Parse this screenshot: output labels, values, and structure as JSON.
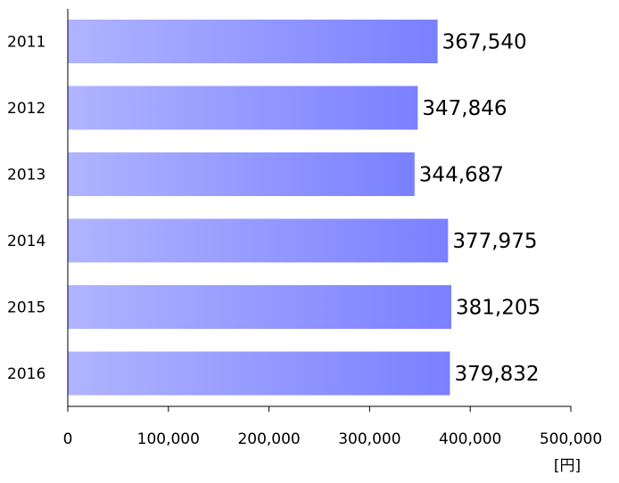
{
  "chart_data": {
    "type": "bar",
    "orientation": "horizontal",
    "categories": [
      "2011",
      "2012",
      "2013",
      "2014",
      "2015",
      "2016"
    ],
    "values": [
      367540,
      347846,
      344687,
      377975,
      381205,
      379832
    ],
    "value_labels": [
      "367,540",
      "347,846",
      "344,687",
      "377,975",
      "381,205",
      "379,832"
    ],
    "xlim": [
      0,
      500000
    ],
    "xticks": [
      0,
      100000,
      200000,
      300000,
      400000,
      500000
    ],
    "xtick_labels": [
      "0",
      "100,000",
      "200,000",
      "300,000",
      "400,000",
      "500,000"
    ],
    "unit": "[円]",
    "grid": false,
    "colors": {
      "bar_light": "#b0b4ff",
      "bar_dark": "#7a80ff",
      "axis": "#000000"
    }
  }
}
